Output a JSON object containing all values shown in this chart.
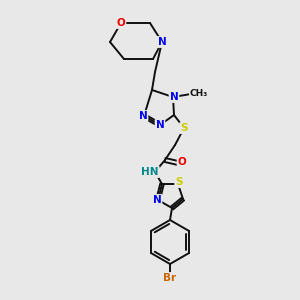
{
  "background_color": "#e8e8e8",
  "bond_color": "#111111",
  "atom_colors": {
    "N": "#0000ee",
    "O": "#ee0000",
    "S": "#cccc00",
    "Br": "#cc6600",
    "HN": "#008888",
    "C": "#111111"
  },
  "figsize": [
    3.0,
    3.0
  ],
  "dpi": 100,
  "xlim": [
    0,
    300
  ],
  "ylim": [
    0,
    300
  ]
}
